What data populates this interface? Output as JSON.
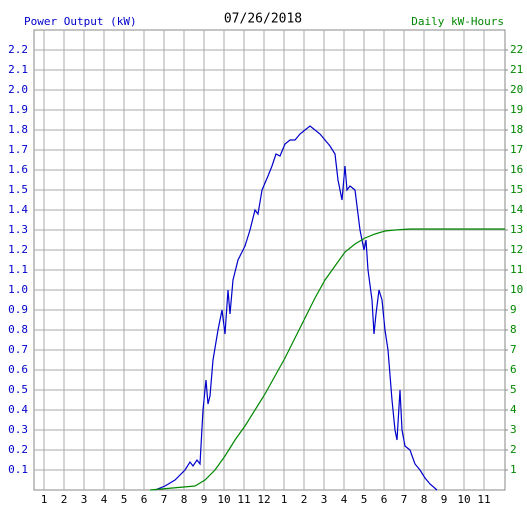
{
  "chart_data": {
    "type": "line",
    "title": "07/26/2018",
    "xlim": [
      0.5,
      24.05
    ],
    "xticks": [
      {
        "value": 1,
        "label": "1"
      },
      {
        "value": 2,
        "label": "2"
      },
      {
        "value": 3,
        "label": "3"
      },
      {
        "value": 4,
        "label": "4"
      },
      {
        "value": 5,
        "label": "5"
      },
      {
        "value": 6,
        "label": "6"
      },
      {
        "value": 7,
        "label": "7"
      },
      {
        "value": 8,
        "label": "8"
      },
      {
        "value": 9,
        "label": "9"
      },
      {
        "value": 10,
        "label": "10"
      },
      {
        "value": 11,
        "label": "11"
      },
      {
        "value": 12,
        "label": "12"
      },
      {
        "value": 13,
        "label": "1"
      },
      {
        "value": 14,
        "label": "2"
      },
      {
        "value": 15,
        "label": "3"
      },
      {
        "value": 16,
        "label": "4"
      },
      {
        "value": 17,
        "label": "5"
      },
      {
        "value": 18,
        "label": "6"
      },
      {
        "value": 19,
        "label": "7"
      },
      {
        "value": 20,
        "label": "8"
      },
      {
        "value": 21,
        "label": "9"
      },
      {
        "value": 22,
        "label": "10"
      },
      {
        "value": 23,
        "label": "11"
      }
    ],
    "ylim": [
      0,
      2.3
    ],
    "yticks": [
      0.1,
      0.2,
      0.3,
      0.4,
      0.5,
      0.6,
      0.7,
      0.8,
      0.9,
      {
        "value": 1,
        "label": "1.0"
      },
      1.1,
      1.2,
      1.3,
      1.4,
      1.5,
      1.6,
      1.7,
      1.8,
      1.9,
      {
        "value": 2,
        "label": "2.0"
      },
      2.1,
      2.2
    ],
    "y2lim": [
      0,
      23
    ],
    "y2ticks": [
      1,
      2,
      3,
      4,
      5,
      6,
      7,
      8,
      9,
      10,
      11,
      12,
      13,
      14,
      15,
      16,
      17,
      18,
      19,
      20,
      21,
      22
    ],
    "grid": true,
    "series": [
      {
        "name": "Power Output (kW)",
        "color": "#0000cc",
        "x": [
          6.55,
          7.05,
          7.55,
          8.05,
          8.3,
          8.45,
          8.65,
          8.8,
          8.95,
          9.1,
          9.2,
          9.3,
          9.45,
          9.7,
          9.9,
          10.05,
          10.2,
          10.3,
          10.45,
          10.7,
          11.05,
          11.3,
          11.55,
          11.7,
          11.9,
          12.2,
          12.4,
          12.6,
          12.8,
          13.05,
          13.3,
          13.55,
          13.8,
          14.05,
          14.3,
          14.55,
          14.8,
          15.05,
          15.3,
          15.55,
          15.7,
          15.9,
          16.05,
          16.15,
          16.3,
          16.55,
          16.8,
          17.0,
          17.1,
          17.2,
          17.4,
          17.5,
          17.6,
          17.75,
          17.9,
          18.05,
          18.2,
          18.4,
          18.55,
          18.65,
          18.8,
          18.9,
          19.05,
          19.3,
          19.55,
          19.8,
          20.05,
          20.3,
          20.65
        ],
        "values": [
          0,
          0.02,
          0.05,
          0.1,
          0.14,
          0.12,
          0.15,
          0.13,
          0.4,
          0.55,
          0.43,
          0.47,
          0.65,
          0.8,
          0.9,
          0.78,
          1.0,
          0.88,
          1.05,
          1.15,
          1.22,
          1.3,
          1.4,
          1.38,
          1.5,
          1.57,
          1.62,
          1.68,
          1.67,
          1.73,
          1.75,
          1.75,
          1.78,
          1.8,
          1.82,
          1.8,
          1.78,
          1.75,
          1.72,
          1.68,
          1.55,
          1.45,
          1.62,
          1.5,
          1.52,
          1.5,
          1.3,
          1.2,
          1.25,
          1.1,
          0.95,
          0.78,
          0.88,
          1.0,
          0.95,
          0.8,
          0.7,
          0.45,
          0.3,
          0.25,
          0.5,
          0.3,
          0.22,
          0.2,
          0.13,
          0.1,
          0.06,
          0.03,
          0
        ]
      },
      {
        "name": "Daily kW-Hours",
        "color": "#008800",
        "axis": "y2",
        "x": [
          6.3,
          8.55,
          9.05,
          9.55,
          10.05,
          10.55,
          11.05,
          11.55,
          12.05,
          12.55,
          13.05,
          13.55,
          14.05,
          14.55,
          15.05,
          15.55,
          16.05,
          16.55,
          17.05,
          17.55,
          18.05,
          18.55,
          19.3,
          24.05
        ],
        "values": [
          0,
          0.2,
          0.5,
          1,
          1.7,
          2.5,
          3.2,
          4,
          4.8,
          5.7,
          6.6,
          7.6,
          8.6,
          9.6,
          10.5,
          11.2,
          11.9,
          12.3,
          12.6,
          12.8,
          12.95,
          13.0,
          13.05,
          13.05
        ]
      }
    ]
  }
}
